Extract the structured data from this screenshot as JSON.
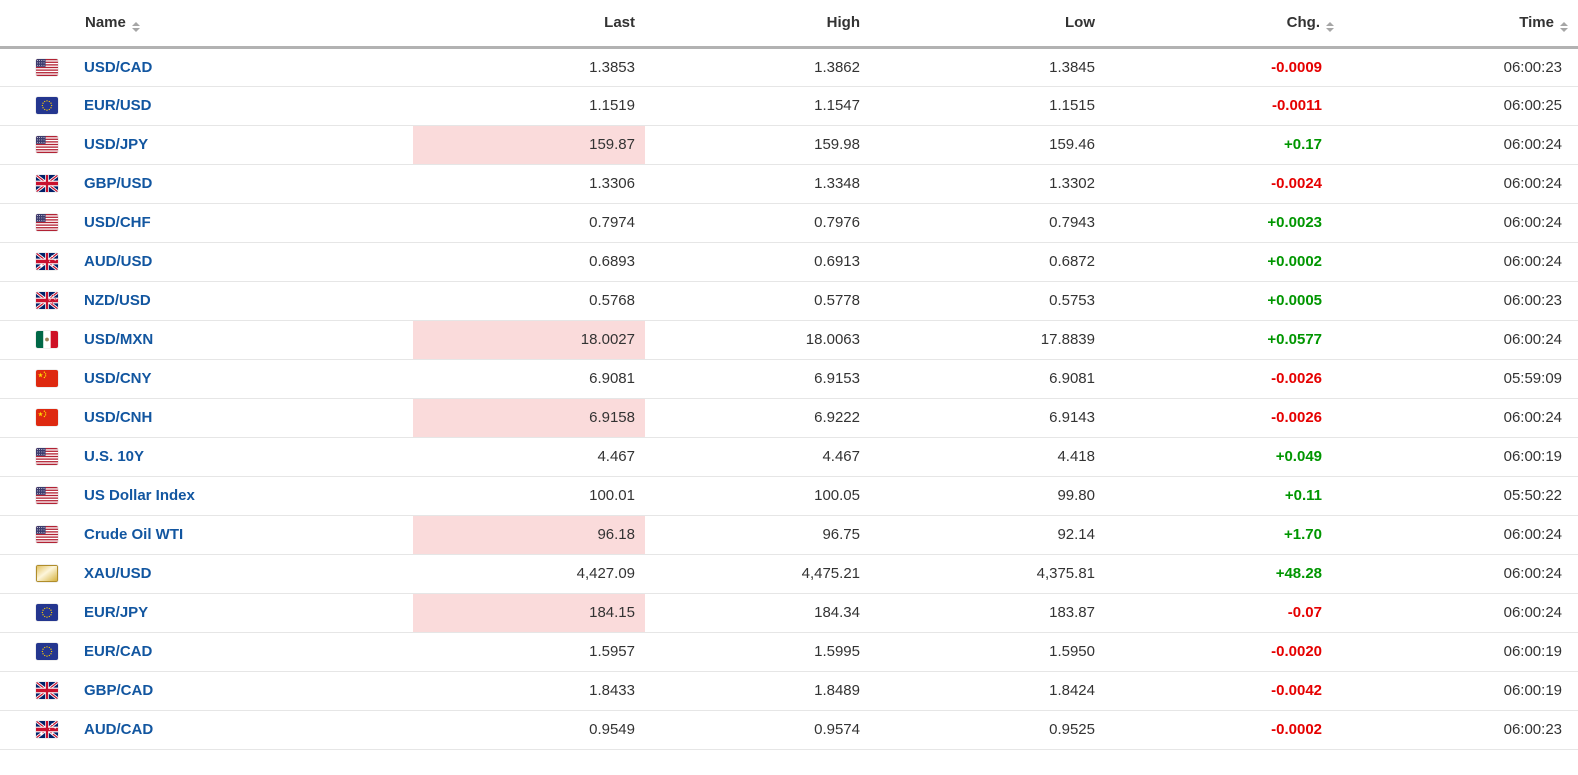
{
  "table": {
    "columns": [
      {
        "label": "Name",
        "sortable": true
      },
      {
        "label": "Last",
        "sortable": false
      },
      {
        "label": "High",
        "sortable": false
      },
      {
        "label": "Low",
        "sortable": false
      },
      {
        "label": "Chg.",
        "sortable": true
      },
      {
        "label": "Time",
        "sortable": true
      }
    ],
    "rows": [
      {
        "name": "USD/CAD",
        "flag": "us",
        "last": "1.3853",
        "high": "1.3862",
        "low": "1.3845",
        "chg": "-0.0009",
        "chg_direction": "down",
        "time": "06:00:23",
        "last_highlighted": false
      },
      {
        "name": "EUR/USD",
        "flag": "eu",
        "last": "1.1519",
        "high": "1.1547",
        "low": "1.1515",
        "chg": "-0.0011",
        "chg_direction": "down",
        "time": "06:00:25",
        "last_highlighted": false
      },
      {
        "name": "USD/JPY",
        "flag": "us",
        "last": "159.87",
        "high": "159.98",
        "low": "159.46",
        "chg": "+0.17",
        "chg_direction": "up",
        "time": "06:00:24",
        "last_highlighted": true
      },
      {
        "name": "GBP/USD",
        "flag": "gb",
        "last": "1.3306",
        "high": "1.3348",
        "low": "1.3302",
        "chg": "-0.0024",
        "chg_direction": "down",
        "time": "06:00:24",
        "last_highlighted": false
      },
      {
        "name": "USD/CHF",
        "flag": "us",
        "last": "0.7974",
        "high": "0.7976",
        "low": "0.7943",
        "chg": "+0.0023",
        "chg_direction": "up",
        "time": "06:00:24",
        "last_highlighted": false
      },
      {
        "name": "AUD/USD",
        "flag": "au",
        "last": "0.6893",
        "high": "0.6913",
        "low": "0.6872",
        "chg": "+0.0002",
        "chg_direction": "up",
        "time": "06:00:24",
        "last_highlighted": false
      },
      {
        "name": "NZD/USD",
        "flag": "nz",
        "last": "0.5768",
        "high": "0.5778",
        "low": "0.5753",
        "chg": "+0.0005",
        "chg_direction": "up",
        "time": "06:00:23",
        "last_highlighted": false
      },
      {
        "name": "USD/MXN",
        "flag": "mx",
        "last": "18.0027",
        "high": "18.0063",
        "low": "17.8839",
        "chg": "+0.0577",
        "chg_direction": "up",
        "time": "06:00:24",
        "last_highlighted": true
      },
      {
        "name": "USD/CNY",
        "flag": "cn",
        "last": "6.9081",
        "high": "6.9153",
        "low": "6.9081",
        "chg": "-0.0026",
        "chg_direction": "down",
        "time": "05:59:09",
        "last_highlighted": false
      },
      {
        "name": "USD/CNH",
        "flag": "cn",
        "last": "6.9158",
        "high": "6.9222",
        "low": "6.9143",
        "chg": "-0.0026",
        "chg_direction": "down",
        "time": "06:00:24",
        "last_highlighted": true
      },
      {
        "name": "U.S. 10Y",
        "flag": "us",
        "last": "4.467",
        "high": "4.467",
        "low": "4.418",
        "chg": "+0.049",
        "chg_direction": "up",
        "time": "06:00:19",
        "last_highlighted": false
      },
      {
        "name": "US Dollar Index",
        "flag": "us",
        "last": "100.01",
        "high": "100.05",
        "low": "99.80",
        "chg": "+0.11",
        "chg_direction": "up",
        "time": "05:50:22",
        "last_highlighted": false
      },
      {
        "name": "Crude Oil WTI",
        "flag": "us",
        "last": "96.18",
        "high": "96.75",
        "low": "92.14",
        "chg": "+1.70",
        "chg_direction": "up",
        "time": "06:00:24",
        "last_highlighted": true
      },
      {
        "name": "XAU/USD",
        "flag": "gold",
        "last": "4,427.09",
        "high": "4,475.21",
        "low": "4,375.81",
        "chg": "+48.28",
        "chg_direction": "up",
        "time": "06:00:24",
        "last_highlighted": false
      },
      {
        "name": "EUR/JPY",
        "flag": "eu",
        "last": "184.15",
        "high": "184.34",
        "low": "183.87",
        "chg": "-0.07",
        "chg_direction": "down",
        "time": "06:00:24",
        "last_highlighted": true
      },
      {
        "name": "EUR/CAD",
        "flag": "eu",
        "last": "1.5957",
        "high": "1.5995",
        "low": "1.5950",
        "chg": "-0.0020",
        "chg_direction": "down",
        "time": "06:00:19",
        "last_highlighted": false
      },
      {
        "name": "GBP/CAD",
        "flag": "gb",
        "last": "1.8433",
        "high": "1.8489",
        "low": "1.8424",
        "chg": "-0.0042",
        "chg_direction": "down",
        "time": "06:00:19",
        "last_highlighted": false
      },
      {
        "name": "AUD/CAD",
        "flag": "au",
        "last": "0.9549",
        "high": "0.9574",
        "low": "0.9525",
        "chg": "-0.0002",
        "chg_direction": "down",
        "time": "06:00:23",
        "last_highlighted": false
      }
    ]
  },
  "colors": {
    "link_blue": "#1256a0",
    "positive_green": "#009600",
    "negative_red": "#e50000",
    "highlight_pink": "#fadbdb",
    "row_border": "#e6e6e6",
    "header_border": "#b2b2b2",
    "text_dark": "#333333",
    "sort_arrow_gray": "#a6a6a6"
  }
}
